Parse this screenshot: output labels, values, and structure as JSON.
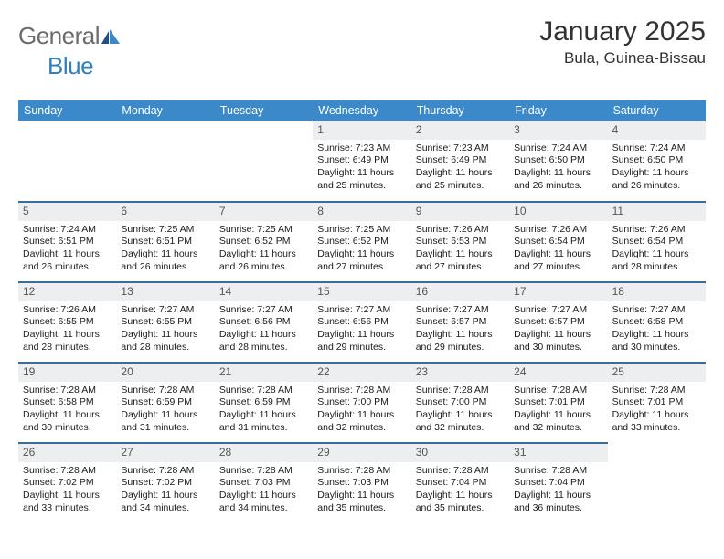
{
  "logo": {
    "text1": "General",
    "text2": "Blue"
  },
  "title": "January 2025",
  "location": "Bula, Guinea-Bissau",
  "colors": {
    "header_bg": "#3b89c9",
    "header_fg": "#ffffff",
    "daynum_bg": "#eceef0",
    "border": "#3b6b99",
    "logo_gray": "#6b6b6b",
    "logo_blue": "#2f7fbf"
  },
  "weekdays": [
    "Sunday",
    "Monday",
    "Tuesday",
    "Wednesday",
    "Thursday",
    "Friday",
    "Saturday"
  ],
  "cells": [
    {
      "day": "",
      "sunrise": "",
      "sunset": "",
      "daylight": ""
    },
    {
      "day": "",
      "sunrise": "",
      "sunset": "",
      "daylight": ""
    },
    {
      "day": "",
      "sunrise": "",
      "sunset": "",
      "daylight": ""
    },
    {
      "day": "1",
      "sunrise": "Sunrise: 7:23 AM",
      "sunset": "Sunset: 6:49 PM",
      "daylight": "Daylight: 11 hours and 25 minutes."
    },
    {
      "day": "2",
      "sunrise": "Sunrise: 7:23 AM",
      "sunset": "Sunset: 6:49 PM",
      "daylight": "Daylight: 11 hours and 25 minutes."
    },
    {
      "day": "3",
      "sunrise": "Sunrise: 7:24 AM",
      "sunset": "Sunset: 6:50 PM",
      "daylight": "Daylight: 11 hours and 26 minutes."
    },
    {
      "day": "4",
      "sunrise": "Sunrise: 7:24 AM",
      "sunset": "Sunset: 6:50 PM",
      "daylight": "Daylight: 11 hours and 26 minutes."
    },
    {
      "day": "5",
      "sunrise": "Sunrise: 7:24 AM",
      "sunset": "Sunset: 6:51 PM",
      "daylight": "Daylight: 11 hours and 26 minutes."
    },
    {
      "day": "6",
      "sunrise": "Sunrise: 7:25 AM",
      "sunset": "Sunset: 6:51 PM",
      "daylight": "Daylight: 11 hours and 26 minutes."
    },
    {
      "day": "7",
      "sunrise": "Sunrise: 7:25 AM",
      "sunset": "Sunset: 6:52 PM",
      "daylight": "Daylight: 11 hours and 26 minutes."
    },
    {
      "day": "8",
      "sunrise": "Sunrise: 7:25 AM",
      "sunset": "Sunset: 6:52 PM",
      "daylight": "Daylight: 11 hours and 27 minutes."
    },
    {
      "day": "9",
      "sunrise": "Sunrise: 7:26 AM",
      "sunset": "Sunset: 6:53 PM",
      "daylight": "Daylight: 11 hours and 27 minutes."
    },
    {
      "day": "10",
      "sunrise": "Sunrise: 7:26 AM",
      "sunset": "Sunset: 6:54 PM",
      "daylight": "Daylight: 11 hours and 27 minutes."
    },
    {
      "day": "11",
      "sunrise": "Sunrise: 7:26 AM",
      "sunset": "Sunset: 6:54 PM",
      "daylight": "Daylight: 11 hours and 28 minutes."
    },
    {
      "day": "12",
      "sunrise": "Sunrise: 7:26 AM",
      "sunset": "Sunset: 6:55 PM",
      "daylight": "Daylight: 11 hours and 28 minutes."
    },
    {
      "day": "13",
      "sunrise": "Sunrise: 7:27 AM",
      "sunset": "Sunset: 6:55 PM",
      "daylight": "Daylight: 11 hours and 28 minutes."
    },
    {
      "day": "14",
      "sunrise": "Sunrise: 7:27 AM",
      "sunset": "Sunset: 6:56 PM",
      "daylight": "Daylight: 11 hours and 28 minutes."
    },
    {
      "day": "15",
      "sunrise": "Sunrise: 7:27 AM",
      "sunset": "Sunset: 6:56 PM",
      "daylight": "Daylight: 11 hours and 29 minutes."
    },
    {
      "day": "16",
      "sunrise": "Sunrise: 7:27 AM",
      "sunset": "Sunset: 6:57 PM",
      "daylight": "Daylight: 11 hours and 29 minutes."
    },
    {
      "day": "17",
      "sunrise": "Sunrise: 7:27 AM",
      "sunset": "Sunset: 6:57 PM",
      "daylight": "Daylight: 11 hours and 30 minutes."
    },
    {
      "day": "18",
      "sunrise": "Sunrise: 7:27 AM",
      "sunset": "Sunset: 6:58 PM",
      "daylight": "Daylight: 11 hours and 30 minutes."
    },
    {
      "day": "19",
      "sunrise": "Sunrise: 7:28 AM",
      "sunset": "Sunset: 6:58 PM",
      "daylight": "Daylight: 11 hours and 30 minutes."
    },
    {
      "day": "20",
      "sunrise": "Sunrise: 7:28 AM",
      "sunset": "Sunset: 6:59 PM",
      "daylight": "Daylight: 11 hours and 31 minutes."
    },
    {
      "day": "21",
      "sunrise": "Sunrise: 7:28 AM",
      "sunset": "Sunset: 6:59 PM",
      "daylight": "Daylight: 11 hours and 31 minutes."
    },
    {
      "day": "22",
      "sunrise": "Sunrise: 7:28 AM",
      "sunset": "Sunset: 7:00 PM",
      "daylight": "Daylight: 11 hours and 32 minutes."
    },
    {
      "day": "23",
      "sunrise": "Sunrise: 7:28 AM",
      "sunset": "Sunset: 7:00 PM",
      "daylight": "Daylight: 11 hours and 32 minutes."
    },
    {
      "day": "24",
      "sunrise": "Sunrise: 7:28 AM",
      "sunset": "Sunset: 7:01 PM",
      "daylight": "Daylight: 11 hours and 32 minutes."
    },
    {
      "day": "25",
      "sunrise": "Sunrise: 7:28 AM",
      "sunset": "Sunset: 7:01 PM",
      "daylight": "Daylight: 11 hours and 33 minutes."
    },
    {
      "day": "26",
      "sunrise": "Sunrise: 7:28 AM",
      "sunset": "Sunset: 7:02 PM",
      "daylight": "Daylight: 11 hours and 33 minutes."
    },
    {
      "day": "27",
      "sunrise": "Sunrise: 7:28 AM",
      "sunset": "Sunset: 7:02 PM",
      "daylight": "Daylight: 11 hours and 34 minutes."
    },
    {
      "day": "28",
      "sunrise": "Sunrise: 7:28 AM",
      "sunset": "Sunset: 7:03 PM",
      "daylight": "Daylight: 11 hours and 34 minutes."
    },
    {
      "day": "29",
      "sunrise": "Sunrise: 7:28 AM",
      "sunset": "Sunset: 7:03 PM",
      "daylight": "Daylight: 11 hours and 35 minutes."
    },
    {
      "day": "30",
      "sunrise": "Sunrise: 7:28 AM",
      "sunset": "Sunset: 7:04 PM",
      "daylight": "Daylight: 11 hours and 35 minutes."
    },
    {
      "day": "31",
      "sunrise": "Sunrise: 7:28 AM",
      "sunset": "Sunset: 7:04 PM",
      "daylight": "Daylight: 11 hours and 36 minutes."
    },
    {
      "day": "",
      "sunrise": "",
      "sunset": "",
      "daylight": ""
    }
  ]
}
